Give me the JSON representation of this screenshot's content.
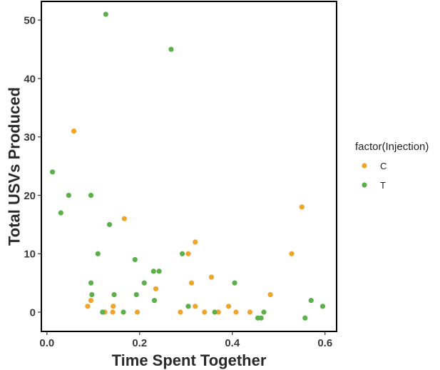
{
  "chart_data": {
    "type": "scatter",
    "title": "",
    "xlabel": "Time Spent Together",
    "ylabel": "Total USVs Produced",
    "xlim": [
      -0.012,
      0.625
    ],
    "ylim": [
      -3.3,
      53.2
    ],
    "x_ticks": [
      0.0,
      0.2,
      0.4,
      0.6
    ],
    "x_tick_labels": [
      "0.0",
      "0.2",
      "0.4",
      "0.6"
    ],
    "y_ticks": [
      0,
      10,
      20,
      30,
      40,
      50
    ],
    "y_tick_labels": [
      "0",
      "10",
      "20",
      "30",
      "40",
      "50"
    ],
    "grid": false,
    "legend": {
      "title": "factor(Injection)",
      "position": "right"
    },
    "series": [
      {
        "name": "C",
        "color": "#F0A42C",
        "points": [
          {
            "x": 0.058,
            "y": 31
          },
          {
            "x": 0.088,
            "y": 1
          },
          {
            "x": 0.095,
            "y": 2
          },
          {
            "x": 0.125,
            "y": 0
          },
          {
            "x": 0.142,
            "y": 0
          },
          {
            "x": 0.143,
            "y": 1
          },
          {
            "x": 0.167,
            "y": 16
          },
          {
            "x": 0.195,
            "y": 0
          },
          {
            "x": 0.235,
            "y": 4
          },
          {
            "x": 0.288,
            "y": 0
          },
          {
            "x": 0.305,
            "y": 10
          },
          {
            "x": 0.312,
            "y": 5
          },
          {
            "x": 0.32,
            "y": 12
          },
          {
            "x": 0.32,
            "y": 1
          },
          {
            "x": 0.34,
            "y": 0
          },
          {
            "x": 0.355,
            "y": 6
          },
          {
            "x": 0.37,
            "y": 0
          },
          {
            "x": 0.392,
            "y": 1
          },
          {
            "x": 0.408,
            "y": 0
          },
          {
            "x": 0.438,
            "y": 0
          },
          {
            "x": 0.482,
            "y": 3
          },
          {
            "x": 0.528,
            "y": 10
          },
          {
            "x": 0.55,
            "y": 18
          }
        ]
      },
      {
        "name": "T",
        "color": "#5BB04A",
        "points": [
          {
            "x": 0.012,
            "y": 24
          },
          {
            "x": 0.03,
            "y": 17
          },
          {
            "x": 0.047,
            "y": 20
          },
          {
            "x": 0.095,
            "y": 20
          },
          {
            "x": 0.095,
            "y": 5
          },
          {
            "x": 0.097,
            "y": 3
          },
          {
            "x": 0.11,
            "y": 10
          },
          {
            "x": 0.12,
            "y": 0
          },
          {
            "x": 0.127,
            "y": 51
          },
          {
            "x": 0.135,
            "y": 15
          },
          {
            "x": 0.145,
            "y": 3
          },
          {
            "x": 0.165,
            "y": 0
          },
          {
            "x": 0.19,
            "y": 9
          },
          {
            "x": 0.193,
            "y": 3
          },
          {
            "x": 0.21,
            "y": 5
          },
          {
            "x": 0.23,
            "y": 7
          },
          {
            "x": 0.232,
            "y": 2
          },
          {
            "x": 0.242,
            "y": 7
          },
          {
            "x": 0.268,
            "y": 45
          },
          {
            "x": 0.292,
            "y": 10
          },
          {
            "x": 0.305,
            "y": 1
          },
          {
            "x": 0.362,
            "y": 0
          },
          {
            "x": 0.405,
            "y": 5
          },
          {
            "x": 0.455,
            "y": -1
          },
          {
            "x": 0.462,
            "y": -1
          },
          {
            "x": 0.468,
            "y": 0
          },
          {
            "x": 0.557,
            "y": -1
          },
          {
            "x": 0.57,
            "y": 2
          },
          {
            "x": 0.595,
            "y": 1
          }
        ]
      }
    ]
  }
}
